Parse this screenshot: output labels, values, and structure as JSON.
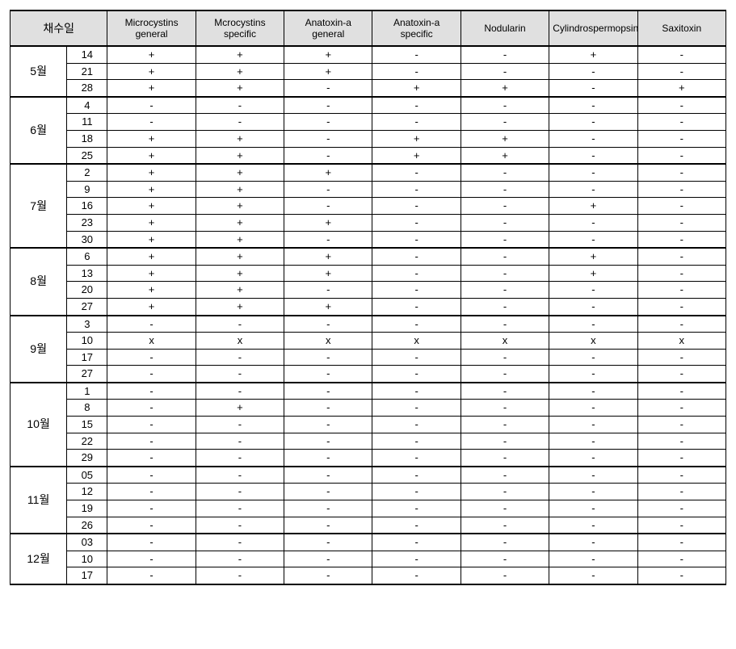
{
  "table": {
    "type": "table",
    "background_color": "#ffffff",
    "header_bg": "#e0e0e0",
    "border_color": "#000000",
    "font_family": "Malgun Gothic",
    "header_font_size": 12,
    "cell_font_size": 13,
    "sampling_header": "채수일",
    "columns": [
      "Microcystins general",
      "Mcrocystins specific",
      "Anatoxin-a general",
      "Anatoxin-a specific",
      "Nodularin",
      "Cylindrospermopsin",
      "Saxitoxin"
    ],
    "groups": [
      {
        "month": "5월",
        "rows": [
          {
            "day": "14",
            "vals": [
              "+",
              "+",
              "+",
              "-",
              "-",
              "+",
              "-"
            ]
          },
          {
            "day": "21",
            "vals": [
              "+",
              "+",
              "+",
              "-",
              "-",
              "-",
              "-"
            ]
          },
          {
            "day": "28",
            "vals": [
              "+",
              "+",
              "-",
              "+",
              "+",
              "-",
              "+"
            ]
          }
        ]
      },
      {
        "month": "6월",
        "rows": [
          {
            "day": "4",
            "vals": [
              "-",
              "-",
              "-",
              "-",
              "-",
              "-",
              "-"
            ]
          },
          {
            "day": "11",
            "vals": [
              "-",
              "-",
              "-",
              "-",
              "-",
              "-",
              "-"
            ]
          },
          {
            "day": "18",
            "vals": [
              "+",
              "+",
              "-",
              "+",
              "+",
              "-",
              "-"
            ]
          },
          {
            "day": "25",
            "vals": [
              "+",
              "+",
              "-",
              "+",
              "+",
              "-",
              "-"
            ]
          }
        ]
      },
      {
        "month": "7월",
        "rows": [
          {
            "day": "2",
            "vals": [
              "+",
              "+",
              "+",
              "-",
              "-",
              "-",
              "-"
            ]
          },
          {
            "day": "9",
            "vals": [
              "+",
              "+",
              "-",
              "-",
              "-",
              "-",
              "-"
            ]
          },
          {
            "day": "16",
            "vals": [
              "+",
              "+",
              "-",
              "-",
              "-",
              "+",
              "-"
            ]
          },
          {
            "day": "23",
            "vals": [
              "+",
              "+",
              "+",
              "-",
              "-",
              "-",
              "-"
            ]
          },
          {
            "day": "30",
            "vals": [
              "+",
              "+",
              "-",
              "-",
              "-",
              "-",
              "-"
            ]
          }
        ]
      },
      {
        "month": "8월",
        "rows": [
          {
            "day": "6",
            "vals": [
              "+",
              "+",
              "+",
              "-",
              "-",
              "+",
              "-"
            ]
          },
          {
            "day": "13",
            "vals": [
              "+",
              "+",
              "+",
              "-",
              "-",
              "+",
              "-"
            ]
          },
          {
            "day": "20",
            "vals": [
              "+",
              "+",
              "-",
              "-",
              "-",
              "-",
              "-"
            ]
          },
          {
            "day": "27",
            "vals": [
              "+",
              "+",
              "+",
              "-",
              "-",
              "-",
              "-"
            ]
          }
        ]
      },
      {
        "month": "9월",
        "rows": [
          {
            "day": "3",
            "vals": [
              "-",
              "-",
              "-",
              "-",
              "-",
              "-",
              "-"
            ]
          },
          {
            "day": "10",
            "vals": [
              "x",
              "x",
              "x",
              "x",
              "x",
              "x",
              "x"
            ]
          },
          {
            "day": "17",
            "vals": [
              "-",
              "-",
              "-",
              "-",
              "-",
              "-",
              "-"
            ]
          },
          {
            "day": "27",
            "vals": [
              "-",
              "-",
              "-",
              "-",
              "-",
              "-",
              "-"
            ]
          }
        ]
      },
      {
        "month": "10월",
        "rows": [
          {
            "day": "1",
            "vals": [
              "-",
              "-",
              "-",
              "-",
              "-",
              "-",
              "-"
            ]
          },
          {
            "day": "8",
            "vals": [
              "-",
              "+",
              "-",
              "-",
              "-",
              "-",
              "-"
            ]
          },
          {
            "day": "15",
            "vals": [
              "-",
              "-",
              "-",
              "-",
              "-",
              "-",
              "-"
            ]
          },
          {
            "day": "22",
            "vals": [
              "-",
              "-",
              "-",
              "-",
              "-",
              "-",
              "-"
            ]
          },
          {
            "day": "29",
            "vals": [
              "-",
              "-",
              "-",
              "-",
              "-",
              "-",
              "-"
            ]
          }
        ]
      },
      {
        "month": "11월",
        "rows": [
          {
            "day": "05",
            "vals": [
              "-",
              "-",
              "-",
              "-",
              "-",
              "-",
              "-"
            ]
          },
          {
            "day": "12",
            "vals": [
              "-",
              "-",
              "-",
              "-",
              "-",
              "-",
              "-"
            ]
          },
          {
            "day": "19",
            "vals": [
              "-",
              "-",
              "-",
              "-",
              "-",
              "-",
              "-"
            ]
          },
          {
            "day": "26",
            "vals": [
              "-",
              "-",
              "-",
              "-",
              "-",
              "-",
              "-"
            ]
          }
        ]
      },
      {
        "month": "12월",
        "rows": [
          {
            "day": "03",
            "vals": [
              "-",
              "-",
              "-",
              "-",
              "-",
              "-",
              "-"
            ]
          },
          {
            "day": "10",
            "vals": [
              "-",
              "-",
              "-",
              "-",
              "-",
              "-",
              "-"
            ]
          },
          {
            "day": "17",
            "vals": [
              "-",
              "-",
              "-",
              "-",
              "-",
              "-",
              "-"
            ]
          }
        ]
      }
    ]
  }
}
